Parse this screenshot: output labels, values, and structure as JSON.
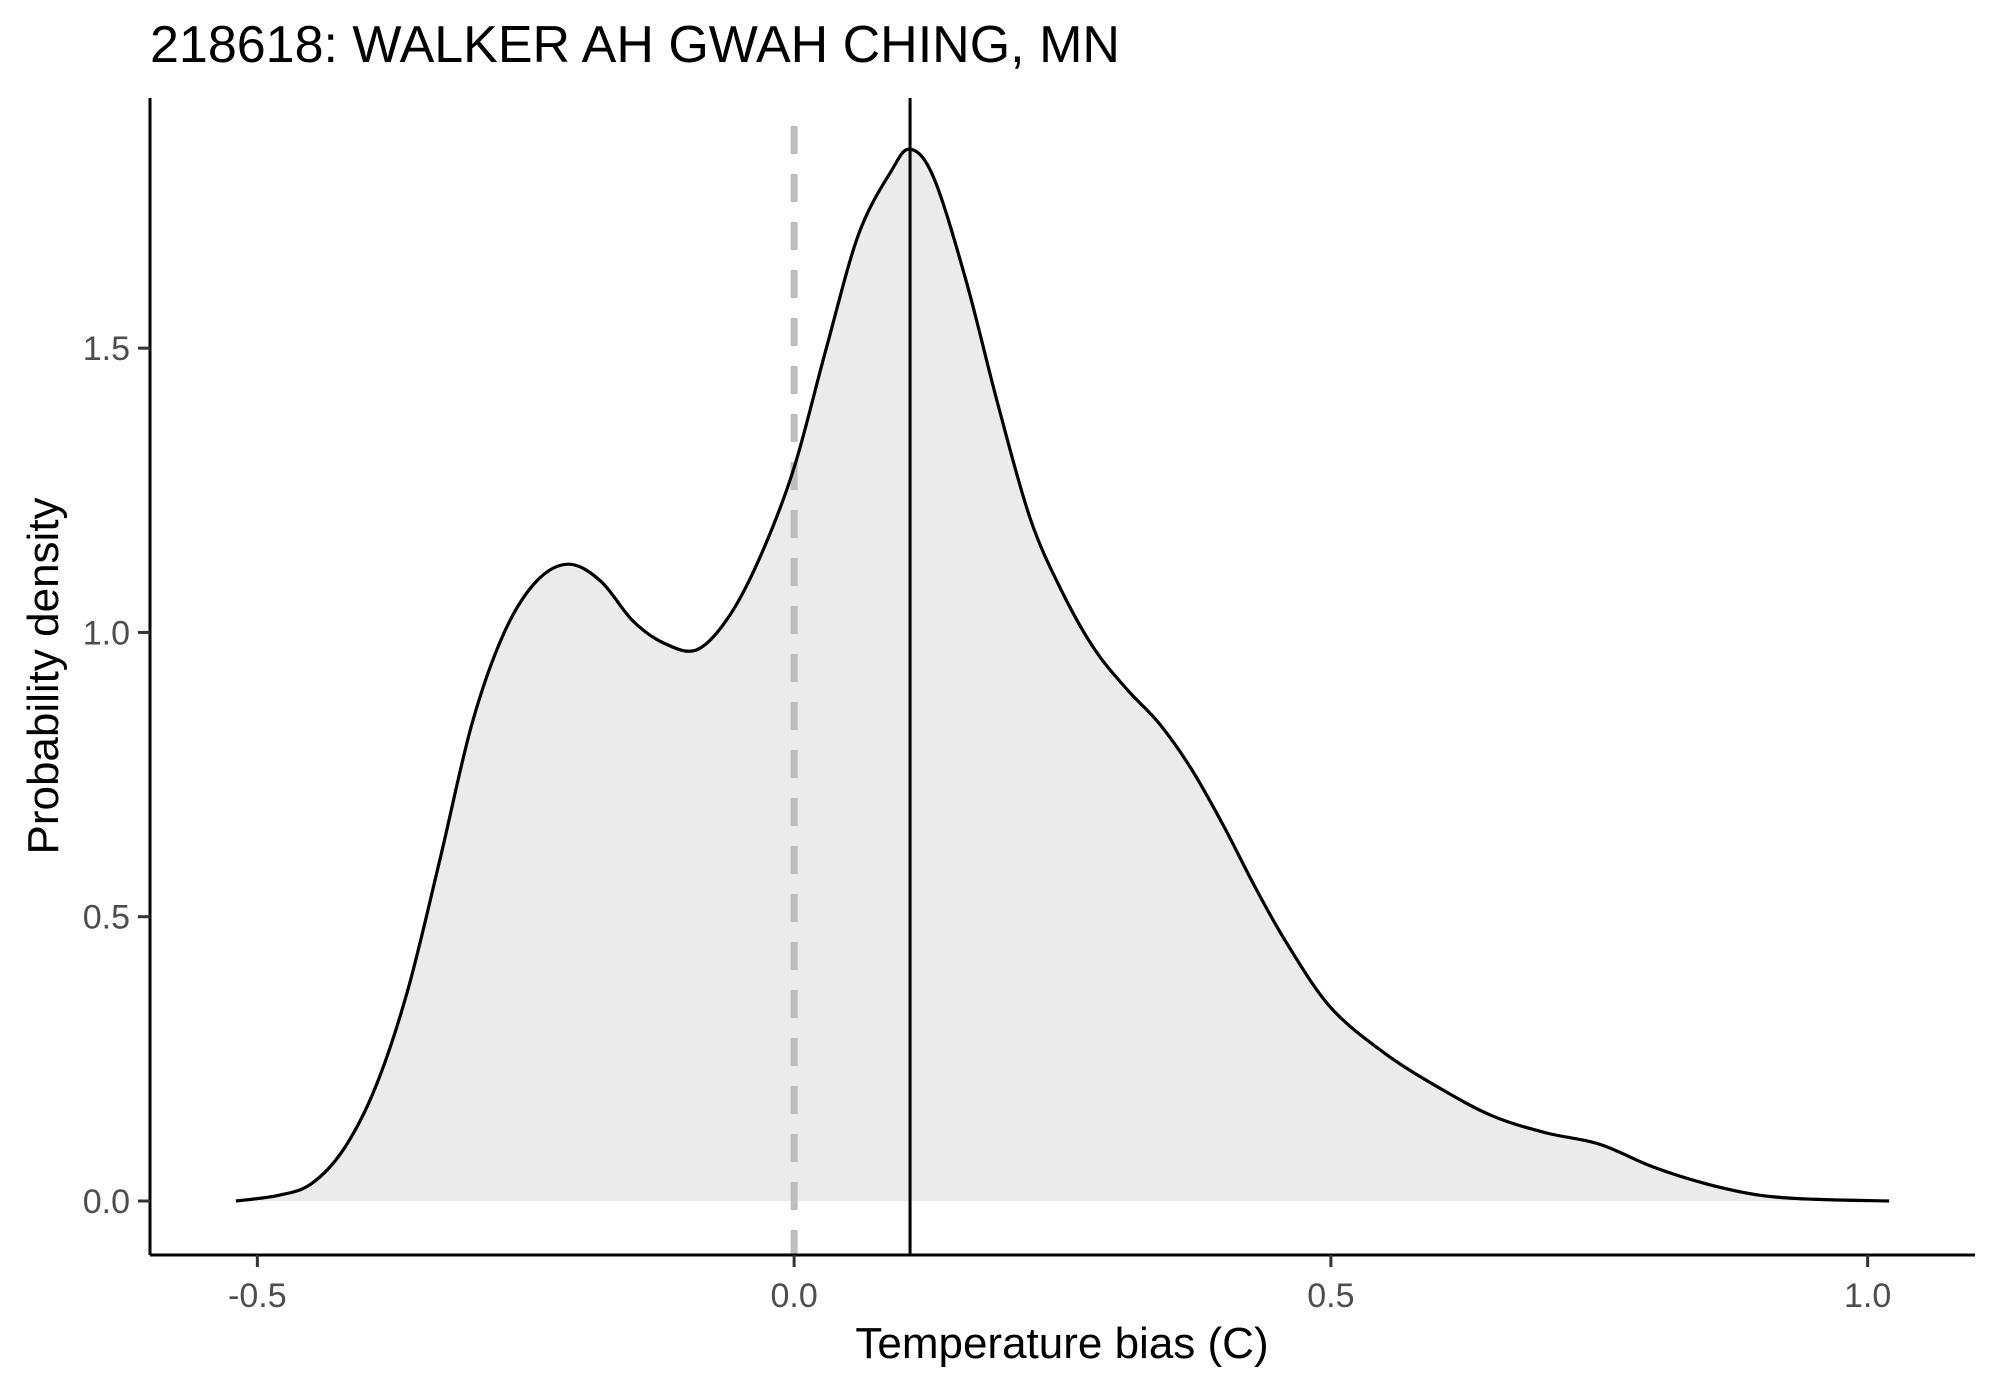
{
  "chart_data": {
    "type": "area",
    "title": "218618: WALKER AH GWAH CHING, MN",
    "xlabel": "Temperature bias (C)",
    "ylabel": "Probability density",
    "xlim": [
      -0.6,
      1.1
    ],
    "ylim": [
      -0.095,
      1.94
    ],
    "x_ticks": [
      -0.5,
      0.0,
      0.5,
      1.0
    ],
    "x_tick_labels": [
      "-0.5",
      "0.0",
      "0.5",
      "1.0"
    ],
    "y_ticks": [
      0.0,
      0.5,
      1.0,
      1.5
    ],
    "y_tick_labels": [
      "0.0",
      "0.5",
      "1.0",
      "1.5"
    ],
    "grid": false,
    "fill_color": "#ebebeb",
    "line_color": "#000000",
    "reference_lines": [
      {
        "x": 0.0,
        "style": "dashed",
        "color": "#bebebe"
      },
      {
        "x": 0.108,
        "style": "solid",
        "color": "#000000"
      }
    ],
    "x": [
      -0.52,
      -0.48,
      -0.45,
      -0.42,
      -0.39,
      -0.36,
      -0.33,
      -0.3,
      -0.27,
      -0.24,
      -0.21,
      -0.18,
      -0.15,
      -0.12,
      -0.09,
      -0.06,
      -0.03,
      0.0,
      0.03,
      0.06,
      0.09,
      0.108,
      0.13,
      0.16,
      0.19,
      0.22,
      0.25,
      0.28,
      0.31,
      0.34,
      0.37,
      0.4,
      0.43,
      0.46,
      0.5,
      0.55,
      0.6,
      0.65,
      0.7,
      0.75,
      0.8,
      0.85,
      0.9,
      0.95,
      1.02
    ],
    "y": [
      0.0,
      0.01,
      0.03,
      0.09,
      0.2,
      0.37,
      0.6,
      0.84,
      1.0,
      1.09,
      1.12,
      1.09,
      1.02,
      0.98,
      0.97,
      1.03,
      1.14,
      1.29,
      1.5,
      1.7,
      1.81,
      1.85,
      1.8,
      1.62,
      1.4,
      1.2,
      1.07,
      0.97,
      0.9,
      0.84,
      0.76,
      0.66,
      0.55,
      0.45,
      0.34,
      0.26,
      0.2,
      0.15,
      0.12,
      0.1,
      0.06,
      0.03,
      0.01,
      0.003,
      0.0
    ]
  }
}
